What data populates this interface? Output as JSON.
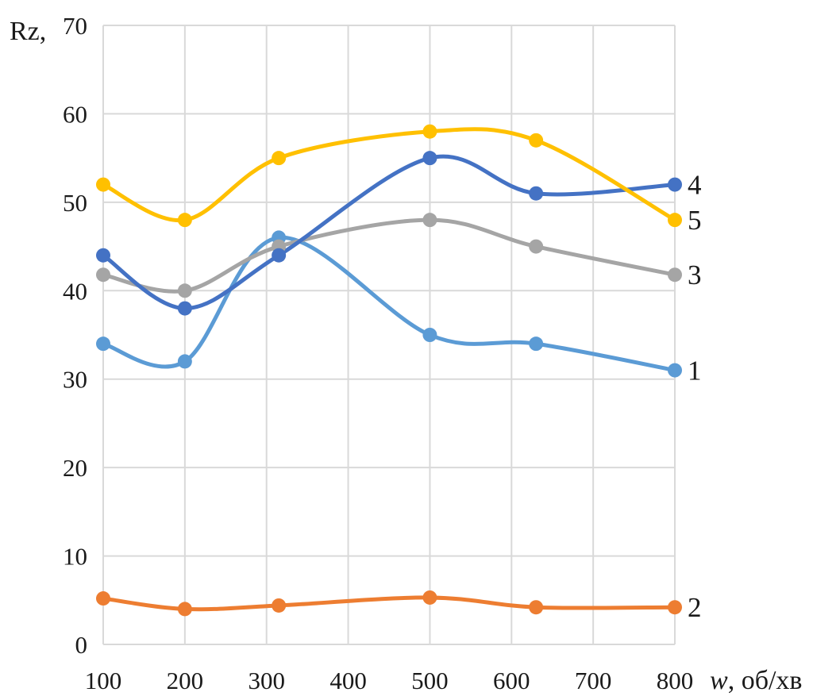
{
  "chart_data": {
    "type": "line",
    "ylabel": "Rz,",
    "xlabel": "w, об/хв",
    "xlabel_italic": "w",
    "xlabel_unit": ", об/хв",
    "xlim": [
      100,
      800
    ],
    "ylim": [
      0,
      70
    ],
    "x_ticks": [
      "100",
      "200",
      "300",
      "400",
      "500",
      "600",
      "700",
      "800"
    ],
    "y_ticks": [
      "0",
      "10",
      "20",
      "30",
      "40",
      "50",
      "60",
      "70"
    ],
    "grid": true,
    "legend": "labels at right end of each line",
    "x": [
      100,
      200,
      315,
      500,
      630,
      800
    ],
    "series": [
      {
        "name": "1",
        "color": "#5b9bd5",
        "values": [
          34,
          32,
          46,
          35,
          34,
          31
        ]
      },
      {
        "name": "2",
        "color": "#ed7d31",
        "values": [
          5.2,
          4.0,
          4.4,
          5.3,
          4.2,
          4.2
        ]
      },
      {
        "name": "3",
        "color": "#a5a5a5",
        "values": [
          41.8,
          40,
          45,
          48,
          45,
          41.8
        ]
      },
      {
        "name": "4",
        "color": "#4472c4",
        "values": [
          44,
          38,
          44,
          55,
          51,
          52
        ]
      },
      {
        "name": "5",
        "color": "#ffc000",
        "values": [
          52,
          48,
          55,
          58,
          57,
          48
        ]
      }
    ]
  }
}
